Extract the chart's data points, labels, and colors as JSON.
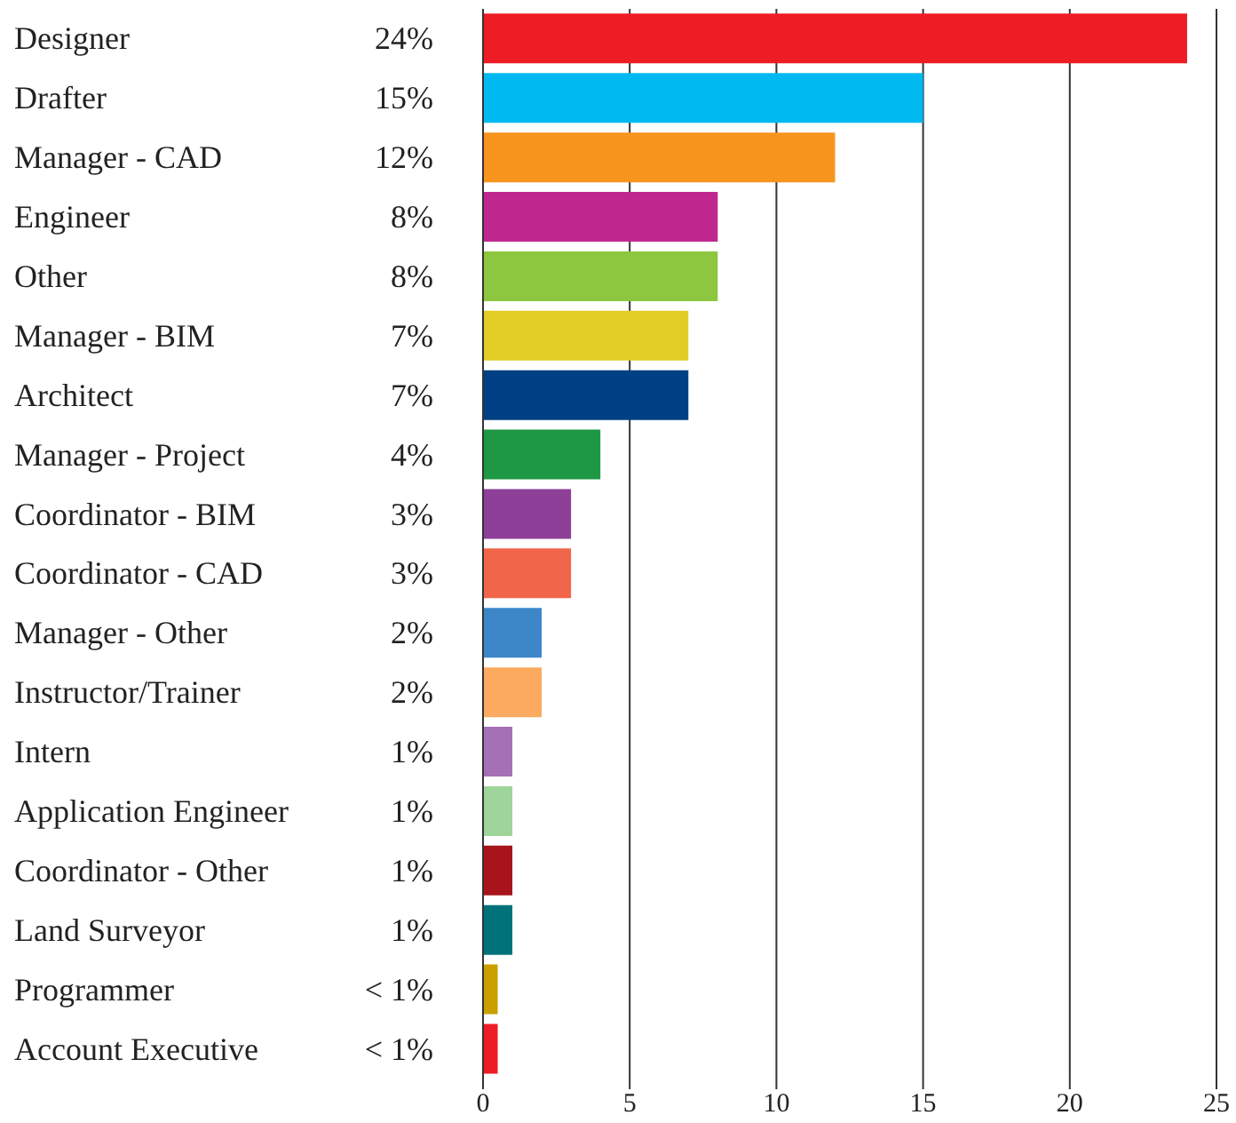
{
  "chart_data": {
    "type": "bar",
    "orientation": "horizontal",
    "categories": [
      "Designer",
      "Drafter",
      "Manager - CAD",
      "Engineer",
      "Other",
      "Manager - BIM",
      "Architect",
      "Manager - Project",
      "Coordinator - BIM",
      "Coordinator - CAD",
      "Manager - Other",
      "Instructor/Trainer",
      "Intern",
      "Application Engineer",
      "Coordinator - Other",
      "Land Surveyor",
      "Programmer",
      "Account Executive"
    ],
    "values": [
      24,
      15,
      12,
      8,
      8,
      7,
      7,
      4,
      3,
      3,
      2,
      2,
      1,
      1,
      1,
      1,
      0.5,
      0.5
    ],
    "value_labels": [
      "24%",
      "15%",
      "12%",
      "8%",
      "8%",
      "7%",
      "7%",
      "4%",
      "3%",
      "3%",
      "2%",
      "2%",
      "1%",
      "1%",
      "1%",
      "1%",
      "< 1%",
      "< 1%"
    ],
    "colors": [
      "#ee1c25",
      "#00b9f1",
      "#f7941d",
      "#c0288f",
      "#8dc63f",
      "#e2cd27",
      "#004185",
      "#1e9845",
      "#8e3f97",
      "#f1664a",
      "#3d87c9",
      "#fbaa5f",
      "#a571b4",
      "#9fd49a",
      "#a7141c",
      "#00737a",
      "#c9a000",
      "#ee1c25"
    ],
    "xlim": [
      0,
      25
    ],
    "xticks": [
      0,
      5,
      10,
      15,
      20,
      25
    ],
    "grid": "x"
  }
}
